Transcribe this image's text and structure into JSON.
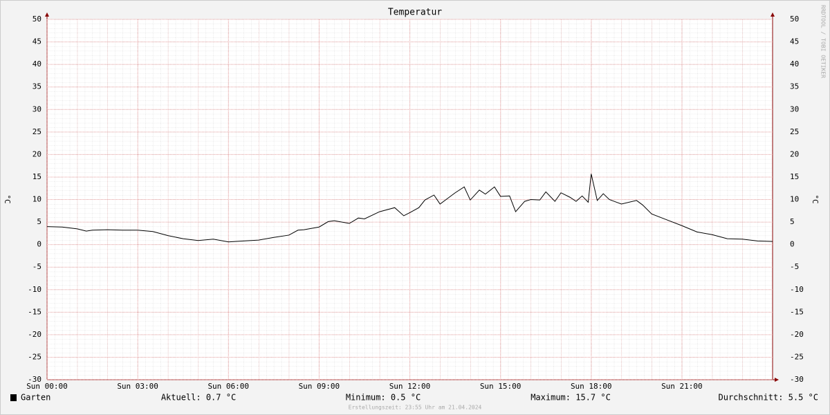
{
  "chart_data": {
    "type": "line",
    "title": "Temperatur",
    "y_label": "°C",
    "y2_label": "°C",
    "watermark": "RRDTOOL / TOBI OETIKER",
    "footer": "Erstellungszeit: 23:55 Uhr am 21.04.2024",
    "xlim": [
      0,
      24
    ],
    "xticks": [
      {
        "value": 0,
        "label": "Sun 00:00"
      },
      {
        "value": 3,
        "label": "Sun 03:00"
      },
      {
        "value": 6,
        "label": "Sun 06:00"
      },
      {
        "value": 9,
        "label": "Sun 09:00"
      },
      {
        "value": 12,
        "label": "Sun 12:00"
      },
      {
        "value": 15,
        "label": "Sun 15:00"
      },
      {
        "value": 18,
        "label": "Sun 18:00"
      },
      {
        "value": 21,
        "label": "Sun 21:00"
      }
    ],
    "ylim": [
      -30,
      50
    ],
    "yticks": [
      -30,
      -25,
      -20,
      -15,
      -10,
      -5,
      0,
      5,
      10,
      15,
      20,
      25,
      30,
      35,
      40,
      45,
      50
    ],
    "y2lim": [
      -30,
      50
    ],
    "y2ticks": [
      -30,
      -25,
      -20,
      -15,
      -10,
      -5,
      0,
      5,
      10,
      15,
      20,
      25,
      30,
      35,
      40,
      45,
      50
    ],
    "grid": true,
    "x": [
      0,
      0.5,
      1,
      1.3,
      1.5,
      2,
      2.5,
      3,
      3.5,
      4,
      4.5,
      5,
      5.5,
      6,
      6.5,
      7,
      7.5,
      8,
      8.3,
      8.5,
      9,
      9.3,
      9.5,
      10,
      10.3,
      10.5,
      11,
      11.5,
      11.8,
      12,
      12.3,
      12.5,
      12.8,
      13,
      13.3,
      13.5,
      13.8,
      14,
      14.3,
      14.5,
      14.8,
      15,
      15.3,
      15.5,
      15.8,
      16,
      16.3,
      16.5,
      16.8,
      17,
      17.3,
      17.5,
      17.7,
      17.9,
      18,
      18.2,
      18.4,
      18.6,
      19,
      19.5,
      19.7,
      20,
      20.5,
      21,
      21.5,
      22,
      22.5,
      23,
      23.5,
      24
    ],
    "series": [
      {
        "name": "Garten",
        "color": "#000000",
        "values": [
          4.0,
          3.9,
          3.5,
          3.0,
          3.2,
          3.3,
          3.2,
          3.2,
          2.9,
          2.0,
          1.3,
          0.9,
          1.2,
          0.6,
          0.8,
          1.0,
          1.6,
          2.1,
          3.2,
          3.3,
          3.9,
          5.1,
          5.3,
          4.7,
          5.9,
          5.7,
          7.3,
          8.2,
          6.4,
          7.1,
          8.2,
          9.9,
          11.0,
          9.0,
          10.5,
          11.5,
          12.8,
          9.9,
          12.1,
          11.2,
          12.8,
          10.7,
          10.8,
          7.3,
          9.6,
          10.0,
          9.9,
          11.7,
          9.6,
          11.5,
          10.5,
          9.6,
          10.8,
          9.4,
          15.7,
          9.8,
          11.3,
          10.0,
          9.0,
          9.8,
          8.8,
          6.8,
          5.5,
          4.2,
          2.8,
          2.2,
          1.3,
          1.2,
          0.8,
          0.7
        ]
      }
    ],
    "stats": [
      "Aktuell: 0.7 °C",
      "Minimum: 0.5 °C",
      "Maximum: 15.7 °C",
      "Durchschnitt: 5.5 °C"
    ]
  }
}
